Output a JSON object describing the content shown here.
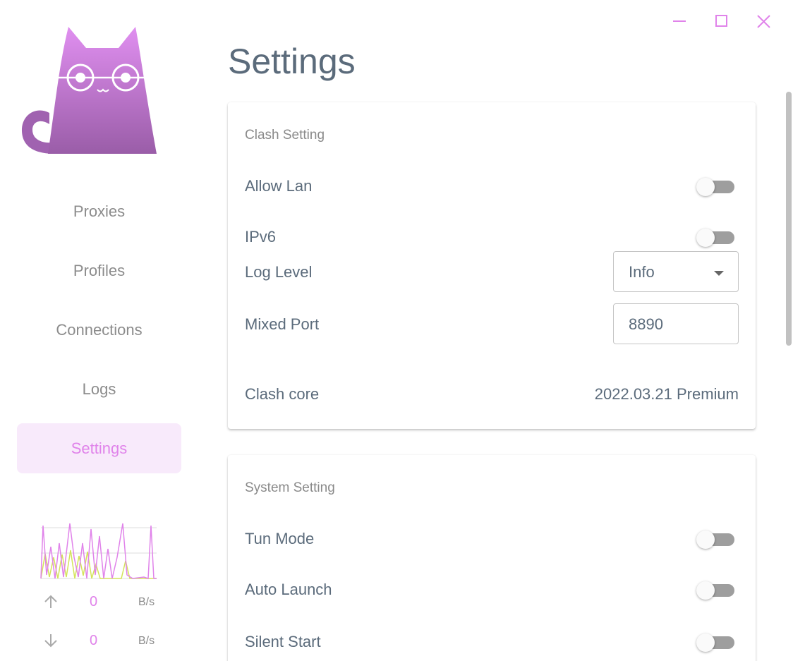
{
  "sidebar": {
    "nav": [
      "Proxies",
      "Profiles",
      "Connections",
      "Logs",
      "Settings"
    ],
    "traffic": {
      "upload": {
        "value": 0,
        "unit": "B/s"
      },
      "download": {
        "value": 0,
        "unit": "B/s"
      }
    }
  },
  "main": {
    "title": "Settings",
    "sections": [
      {
        "title": "Clash Setting",
        "rows": [
          {
            "label": "Allow Lan",
            "control": "switch",
            "on": false
          },
          {
            "label": "IPv6",
            "control": "switch",
            "on": false
          },
          {
            "label": "Log Level",
            "control": "select",
            "value": "Info"
          },
          {
            "label": "Mixed Port",
            "control": "input",
            "value": 8890
          },
          {
            "label": "Clash core",
            "control": "text",
            "value": "2022.03.21 Premium"
          }
        ]
      },
      {
        "title": "System Setting",
        "rows": [
          {
            "label": "Tun Mode",
            "control": "switch",
            "on": false
          },
          {
            "label": "Auto Launch",
            "control": "switch",
            "on": false
          },
          {
            "label": "Silent Start",
            "control": "switch",
            "on": false
          }
        ]
      }
    ]
  }
}
